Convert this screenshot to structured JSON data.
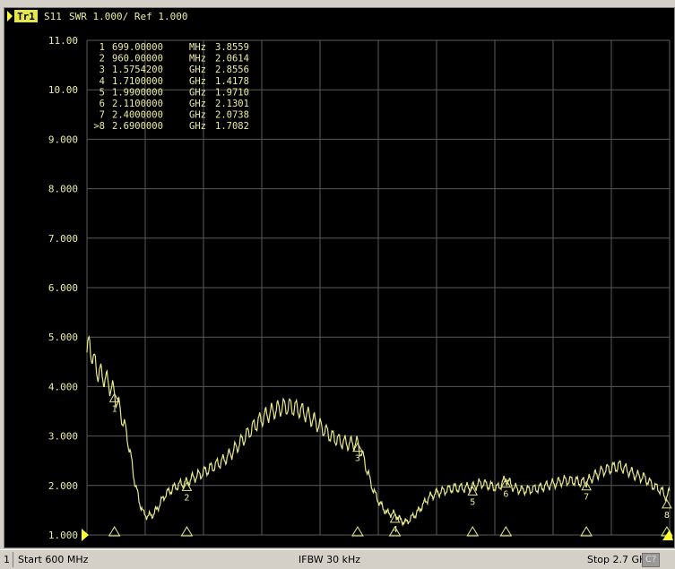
{
  "colors": {
    "background": "#000000",
    "grid": "#5a5a5a",
    "trace": "#e8e88a",
    "text": "#ececa0",
    "marker": "#e8e88a",
    "ref_marker": "#ffff33",
    "trace_badge_bg": "#e6e64c",
    "trace_badge_fg": "#000000"
  },
  "header": {
    "trace_badge": "Tr1",
    "parameter": "S11",
    "format": "SWR 1.000/ Ref 1.000"
  },
  "marker_table": [
    {
      "num": "1",
      "freq": "699.00000",
      "unit": "MHz",
      "value": "3.8559"
    },
    {
      "num": "2",
      "freq": "960.00000",
      "unit": "MHz",
      "value": "2.0614"
    },
    {
      "num": "3",
      "freq": "1.5754200",
      "unit": "GHz",
      "value": "2.8556"
    },
    {
      "num": "4",
      "freq": "1.7100000",
      "unit": "GHz",
      "value": "1.4178"
    },
    {
      "num": "5",
      "freq": "1.9900000",
      "unit": "GHz",
      "value": "1.9710"
    },
    {
      "num": "6",
      "freq": "2.1100000",
      "unit": "GHz",
      "value": "2.1301"
    },
    {
      "num": "7",
      "freq": "2.4000000",
      "unit": "GHz",
      "value": "2.0738"
    },
    {
      "num": ">8",
      "freq": "2.6900000",
      "unit": "GHz",
      "value": "1.7082"
    }
  ],
  "status": {
    "channel": "1",
    "start": "Start 600 MHz",
    "ifbw": "IFBW 30 kHz",
    "stop": "Stop 2.7 GHz",
    "badge": "C?"
  },
  "chart_data": {
    "type": "line",
    "title": "",
    "xlabel": "",
    "ylabel": "",
    "x_unit": "MHz",
    "xlim": [
      600,
      2700
    ],
    "ylim": [
      1.0,
      11.0
    ],
    "y_ticks": [
      "1.000",
      "2.000",
      "3.000",
      "4.000",
      "5.000",
      "6.000",
      "7.000",
      "8.000",
      "9.000",
      "10.00",
      "11.00"
    ],
    "x_divisions": 10,
    "grid": true,
    "ripple_mhz": 22,
    "series": [
      {
        "x": [
          600,
          610,
          625,
          640,
          660,
          680,
          699,
          715,
          730,
          745,
          760,
          775,
          790,
          805,
          820,
          840,
          860,
          880,
          900,
          920,
          940,
          960,
          980,
          1000,
          1030,
          1060,
          1090,
          1120,
          1150,
          1180,
          1210,
          1240,
          1270,
          1300,
          1330,
          1360,
          1390,
          1420,
          1450,
          1480,
          1510,
          1540,
          1575,
          1600,
          1620,
          1640,
          1660,
          1680,
          1710,
          1730,
          1750,
          1770,
          1790,
          1810,
          1830,
          1860,
          1890,
          1920,
          1950,
          1990,
          2020,
          2050,
          2080,
          2110,
          2140,
          2170,
          2200,
          2230,
          2260,
          2290,
          2320,
          2350,
          2380,
          2400,
          2430,
          2460,
          2490,
          2520,
          2550,
          2580,
          2610,
          2640,
          2670,
          2690,
          2700
        ],
        "y": [
          4.7,
          4.85,
          4.5,
          4.3,
          4.2,
          4.05,
          3.86,
          3.6,
          3.3,
          3.0,
          2.5,
          2.0,
          1.65,
          1.42,
          1.38,
          1.42,
          1.6,
          1.8,
          1.9,
          1.98,
          2.03,
          2.06,
          2.15,
          2.2,
          2.3,
          2.4,
          2.5,
          2.65,
          2.85,
          3.05,
          3.25,
          3.4,
          3.5,
          3.58,
          3.6,
          3.55,
          3.45,
          3.3,
          3.15,
          3.0,
          2.9,
          2.85,
          2.85,
          2.5,
          2.1,
          1.8,
          1.6,
          1.45,
          1.42,
          1.3,
          1.25,
          1.35,
          1.45,
          1.6,
          1.75,
          1.85,
          1.9,
          1.95,
          1.95,
          1.97,
          2.05,
          2.0,
          1.95,
          2.13,
          1.95,
          1.9,
          1.92,
          1.95,
          2.0,
          2.05,
          2.1,
          2.1,
          2.07,
          2.07,
          2.2,
          2.3,
          2.35,
          2.4,
          2.3,
          2.2,
          2.15,
          2.0,
          1.9,
          1.75,
          1.9
        ]
      }
    ],
    "markers": [
      {
        "num": "1",
        "x": 699,
        "y": 3.8559
      },
      {
        "num": "2",
        "x": 960,
        "y": 2.0614
      },
      {
        "num": "3",
        "x": 1575.42,
        "y": 2.8556
      },
      {
        "num": "4",
        "x": 1710,
        "y": 1.4178
      },
      {
        "num": "5",
        "x": 1990,
        "y": 1.971
      },
      {
        "num": "6",
        "x": 2110,
        "y": 2.1301
      },
      {
        "num": "7",
        "x": 2400,
        "y": 2.0738
      },
      {
        "num": "8",
        "x": 2690,
        "y": 1.7082
      }
    ]
  }
}
